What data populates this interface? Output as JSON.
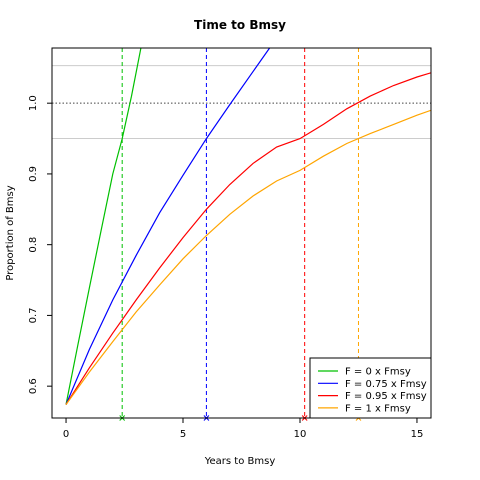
{
  "chart_data": {
    "type": "line",
    "title": "Time to Bmsy",
    "xlabel": "Years to Bmsy",
    "ylabel": "Proportion of Bmsy",
    "xlim": [
      -0.6,
      15.6
    ],
    "ylim": [
      0.555,
      1.078
    ],
    "xticks": [
      0,
      5,
      10,
      15
    ],
    "yticks": [
      0.6,
      0.7,
      0.8,
      0.9,
      1.0
    ],
    "xtick_labels": [
      "0",
      "5",
      "10",
      "15"
    ],
    "ytick_labels": [
      "0.6",
      "0.7",
      "0.8",
      "0.9",
      "1.0"
    ],
    "grid": false,
    "reference_lines": [
      {
        "y": 1.0,
        "style": "dotted",
        "color": "#444444"
      },
      {
        "y": 0.95,
        "style": "solid",
        "color": "#cccccc"
      },
      {
        "y": 1.053,
        "style": "solid",
        "color": "#cccccc"
      }
    ],
    "legend": {
      "position": "bottom-right",
      "entries": [
        "F = 0 x Fmsy",
        "F = 0.75 x Fmsy",
        "F = 0.95 x Fmsy",
        "F = 1 x Fmsy"
      ]
    },
    "series": [
      {
        "name": "F = 0 x Fmsy",
        "color": "#00c000",
        "x": [
          0,
          0.5,
          1.0,
          1.5,
          2.0,
          2.4,
          2.8,
          3.2
        ],
        "y": [
          0.574,
          0.657,
          0.739,
          0.82,
          0.9,
          0.95,
          1.01,
          1.078
        ],
        "vline_x": 2.4
      },
      {
        "name": "F = 0.75 x Fmsy",
        "color": "#0000ff",
        "x": [
          0,
          1,
          2,
          3,
          4,
          5,
          6,
          7,
          8,
          8.7
        ],
        "y": [
          0.574,
          0.652,
          0.722,
          0.785,
          0.845,
          0.898,
          0.95,
          0.998,
          1.045,
          1.078
        ],
        "vline_x": 6.0
      },
      {
        "name": "F = 0.95 x Fmsy",
        "color": "#ff0000",
        "x": [
          0,
          1,
          2,
          3,
          4,
          5,
          6,
          7,
          8,
          9,
          10,
          11,
          12,
          13,
          14,
          15,
          15.6
        ],
        "y": [
          0.574,
          0.626,
          0.675,
          0.722,
          0.767,
          0.81,
          0.85,
          0.885,
          0.915,
          0.938,
          0.95,
          0.97,
          0.992,
          1.01,
          1.025,
          1.037,
          1.043
        ],
        "vline_x": 10.2
      },
      {
        "name": "F = 1 x Fmsy",
        "color": "#ffa500",
        "x": [
          0,
          1,
          2,
          3,
          4,
          5,
          6,
          7,
          8,
          9,
          10,
          11,
          12,
          13,
          14,
          15,
          15.6
        ],
        "y": [
          0.574,
          0.62,
          0.663,
          0.705,
          0.743,
          0.78,
          0.813,
          0.843,
          0.869,
          0.89,
          0.905,
          0.925,
          0.943,
          0.957,
          0.97,
          0.983,
          0.99
        ],
        "vline_x": 12.5
      }
    ]
  }
}
